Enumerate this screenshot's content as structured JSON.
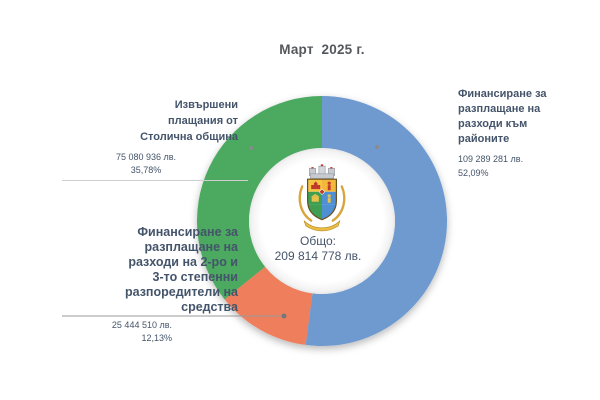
{
  "title": "Март  2025 г.",
  "center": {
    "label": "Общо:",
    "value": "209 814 778 лв."
  },
  "chart_data": {
    "type": "pie",
    "subtype": "donut",
    "title": "Март  2025 г.",
    "total_label": "Общо:",
    "total_value": 209814778,
    "total_display": "209 814 778 лв.",
    "currency": "лв.",
    "direction": "clockwise",
    "start_angle_deg": 0,
    "legend_position": "callouts",
    "slices": [
      {
        "label": "Финансиране за разплащане на разходи към районите",
        "value": 109289281,
        "display": "109 289 281 лв.",
        "percent": 52.09,
        "percent_display": "52,09%",
        "color": "#6E9AD0"
      },
      {
        "label": "Финансиране за разплащане на разходи на 2-ро и 3-то степенни разпоредители на средства",
        "value": 25444510,
        "display": "25 444 510 лв.",
        "percent": 12.13,
        "percent_display": "12,13%",
        "color": "#EE7E5C"
      },
      {
        "label": "Извършени плащания от Столична община",
        "value": 75080936,
        "display": "75 080 936 лв.",
        "percent": 35.78,
        "percent_display": "35,78%",
        "color": "#4CA961"
      }
    ]
  },
  "callouts": {
    "right": {
      "label": "Финансиране за\nразплащане на\nразходи към\nрайоните",
      "value": "109 289 281 лв.",
      "percent": "52,09%"
    },
    "left_top": {
      "label": "Извършени\nплащания от\nСтолична община",
      "value": "75 080 936 лв.",
      "percent": "35,78%"
    },
    "left_bottom": {
      "label": "Финансиране за\nразплащане на\nразходи на 2-ро и\n3-то степенни\nразпоредители на\nсредства",
      "value": "25 444 510 лв.",
      "percent": "12,13%"
    }
  }
}
